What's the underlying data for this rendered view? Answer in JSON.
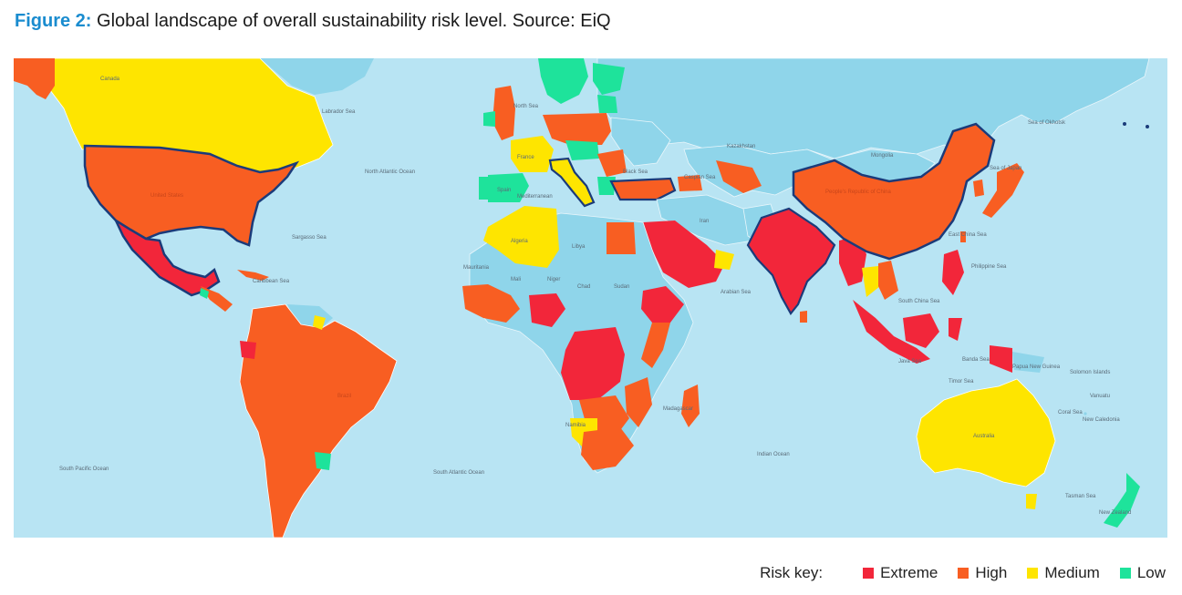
{
  "caption": {
    "label": "Figure 2:",
    "text": " Global landscape of overall sustainability risk level. Source: EiQ"
  },
  "colors": {
    "ocean": "#b8e4f3",
    "nodata": "#8fd5ea",
    "extreme": "#f2263a",
    "high": "#f85e22",
    "medium": "#fee500",
    "low": "#1ee39b",
    "border": "#1b3b7a"
  },
  "legend": {
    "title": "Risk key:",
    "items": [
      {
        "label": "Extreme",
        "color": "#f2263a"
      },
      {
        "label": "High",
        "color": "#f85e22"
      },
      {
        "label": "Medium",
        "color": "#fee500"
      },
      {
        "label": "Low",
        "color": "#1ee39b"
      }
    ]
  },
  "map_labels": {
    "canada": "Canada",
    "labrador_sea": "Labrador Sea",
    "north_atlantic": "North Atlantic Ocean",
    "united_states": "United States",
    "sargasso": "Sargasso Sea",
    "caribbean": "Caribbean Sea",
    "south_pacific": "South Pacific Ocean",
    "south_atlantic": "South Atlantic Ocean",
    "brazil": "Brazil",
    "north_sea": "North Sea",
    "france": "France",
    "spain": "Spain",
    "mediterranean": "Mediterranean",
    "black_sea": "Black Sea",
    "caspian": "Caspian Sea",
    "algeria": "Algeria",
    "libya": "Libya",
    "mali": "Mali",
    "niger": "Niger",
    "chad": "Chad",
    "sudan": "Sudan",
    "mauritania": "Mauritania",
    "namibia": "Namibia",
    "madagascar": "Madagascar",
    "iran": "Iran",
    "arabian_sea": "Arabian Sea",
    "kazakhstan": "Kazakhstan",
    "mongolia": "Mongolia",
    "china": "People's Republic of China",
    "sea_of_japan": "Sea of Japan",
    "sea_of_okhotsk": "Sea of Okhotsk",
    "east_china_sea": "East China Sea",
    "philippine_sea": "Philippine Sea",
    "south_china_sea": "South China Sea",
    "java_sea": "Java Sea",
    "banda_sea": "Banda Sea",
    "timor_sea": "Timor Sea",
    "indian_ocean": "Indian Ocean",
    "australia": "Australia",
    "tasman_sea": "Tasman Sea",
    "new_zealand": "New Zealand",
    "solomon": "Solomon Islands",
    "vanuatu": "Vanuatu",
    "coral_sea": "Coral Sea",
    "new_caledonia": "New Caledonia",
    "papua": "Papua New Guinea"
  }
}
